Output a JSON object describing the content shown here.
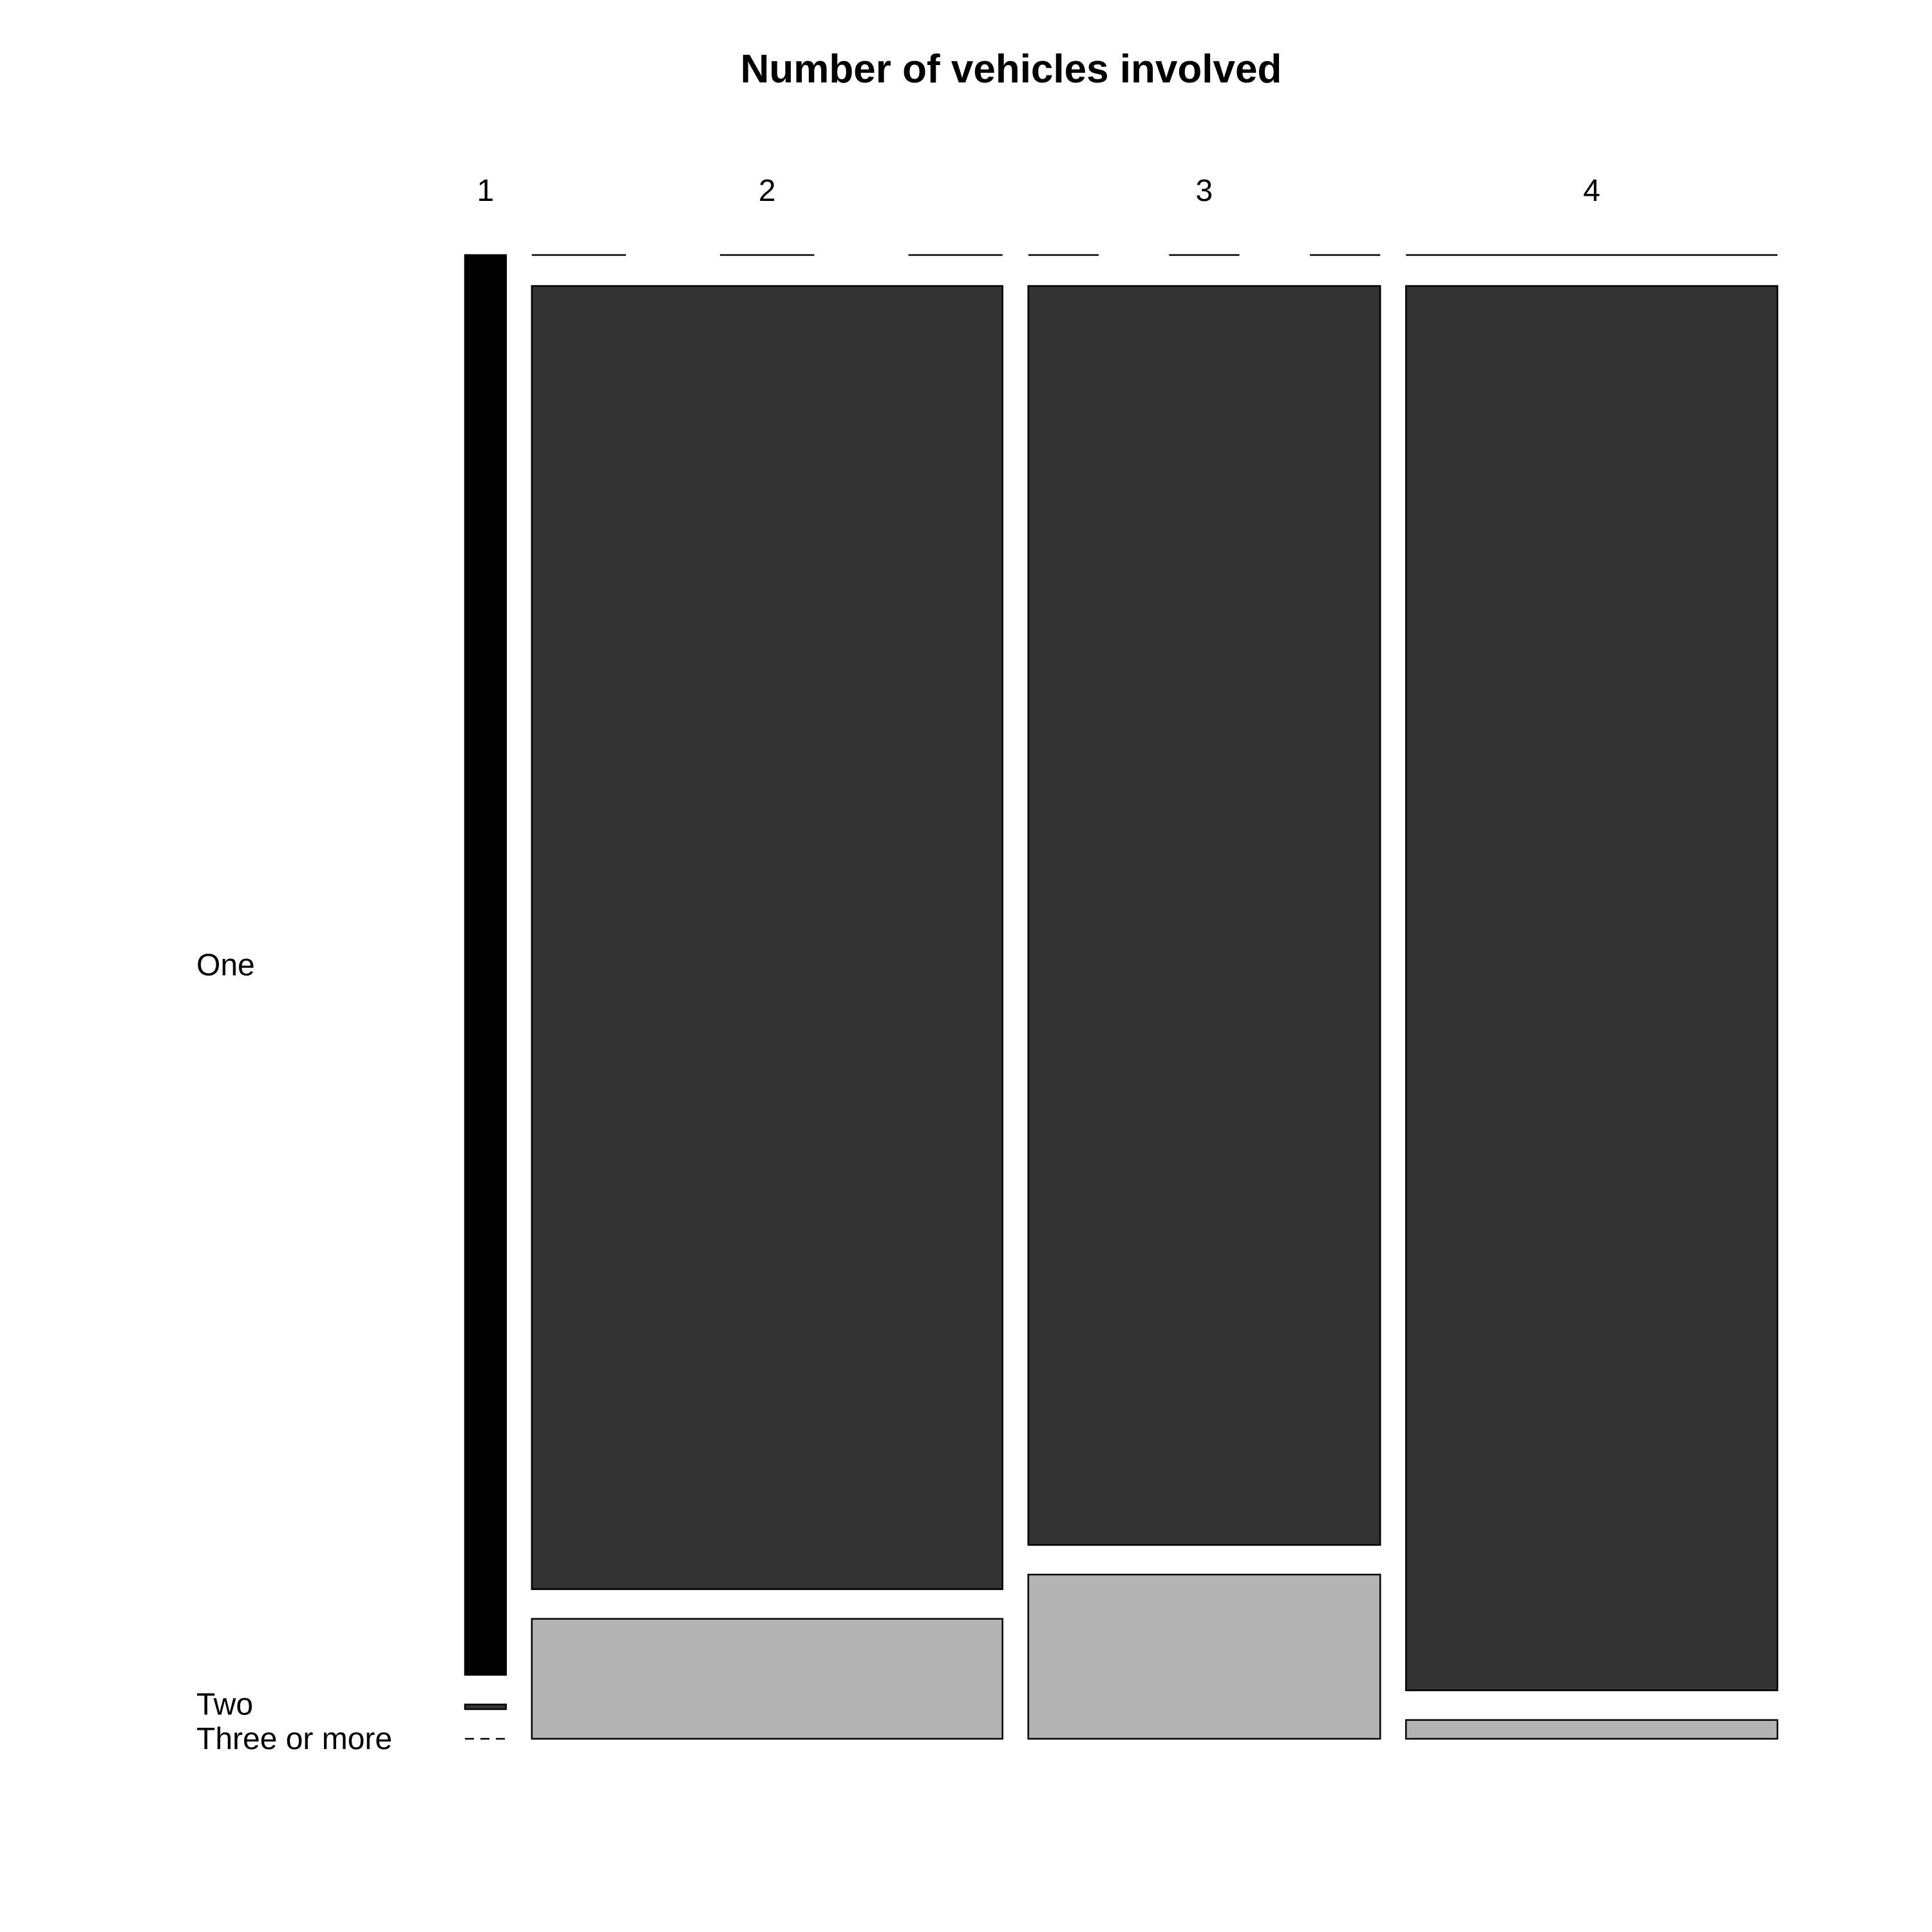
{
  "chart_data": {
    "type": "mosaic",
    "title": "Number of vehicles involved",
    "column_variable_levels": [
      "1",
      "2",
      "3",
      "4"
    ],
    "row_levels": [
      "One",
      "Two",
      "Three or more"
    ],
    "column_proportions": [
      0.0353,
      0.4047,
      0.3026,
      0.3194
    ],
    "cells": [
      {
        "column": "1",
        "proportions": [
          0.9967,
          0.0033,
          0.0
        ]
      },
      {
        "column": "2",
        "proportions": [
          0.9157,
          0.0843,
          0.0
        ]
      },
      {
        "column": "3",
        "proportions": [
          0.8846,
          0.1154,
          0.0
        ]
      },
      {
        "column": "4",
        "proportions": [
          0.9868,
          0.0132,
          0.0
        ]
      }
    ],
    "colors": {
      "column_1": "#000000",
      "one": "#333333",
      "two_or_more": "#b3b3b3",
      "outline": "#000000",
      "background": "#ffffff"
    }
  }
}
